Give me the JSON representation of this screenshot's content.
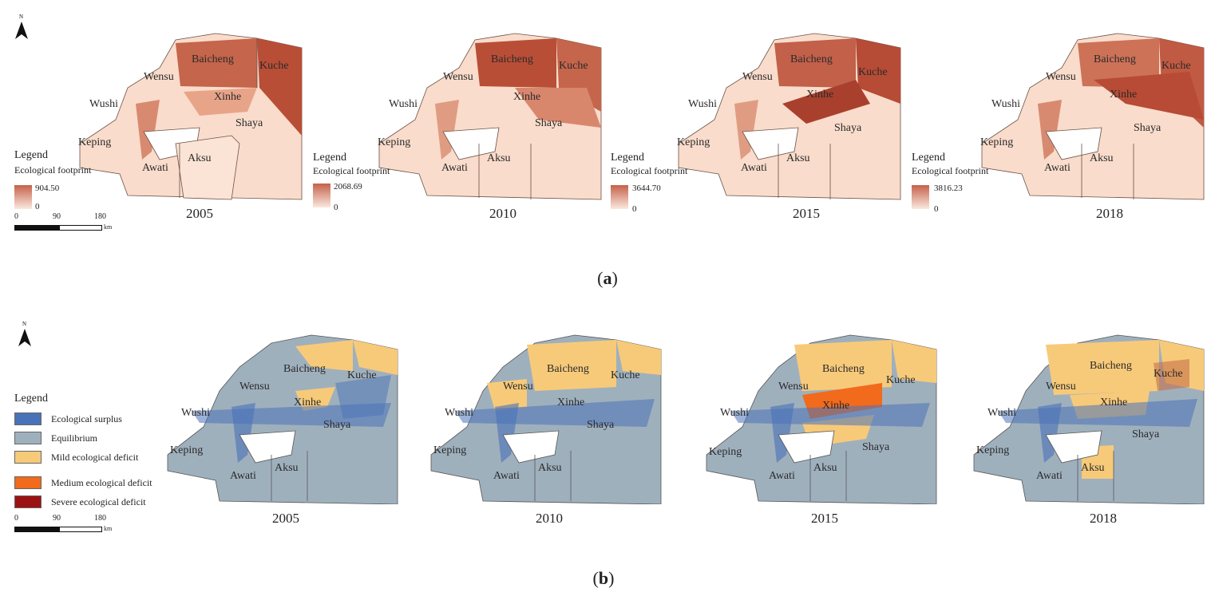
{
  "panel_a": {
    "label_open": "(",
    "label_letter": "a",
    "label_close": ")",
    "legend_title": "Legend",
    "legend_subtitle": "Ecological footprint",
    "maps": [
      {
        "year": "2005",
        "max": "904.50",
        "min": "0"
      },
      {
        "year": "2010",
        "max": "2068.69",
        "min": "0"
      },
      {
        "year": "2015",
        "max": "3644.70",
        "min": "0"
      },
      {
        "year": "2018",
        "max": "3816.23",
        "min": "0"
      }
    ],
    "colors": {
      "high": "#c4614a",
      "low": "#fbe8de"
    }
  },
  "panel_b": {
    "label_open": "(",
    "label_letter": "b",
    "label_close": ")",
    "legend_title": "Legend",
    "categories": [
      {
        "name": "Ecological surplus",
        "color": "#4a72b8"
      },
      {
        "name": "Equilibrium",
        "color": "#9fb0bd"
      },
      {
        "name": "Mild ecological deficit",
        "color": "#f7ca7a"
      },
      {
        "name": "Medium ecological deficit",
        "color": "#f26a1b"
      },
      {
        "name": "Severe ecological deficit",
        "color": "#9c1212"
      }
    ],
    "years": [
      "2005",
      "2010",
      "2015",
      "2018"
    ]
  },
  "regions": [
    "Baicheng",
    "Kuche",
    "Wensu",
    "Xinhe",
    "Wushi",
    "Shaya",
    "Keping",
    "Awati",
    "Aksu"
  ],
  "north_label": "N",
  "scale": {
    "t0": "0",
    "t1": "90",
    "t2": "180",
    "unit": "km"
  }
}
